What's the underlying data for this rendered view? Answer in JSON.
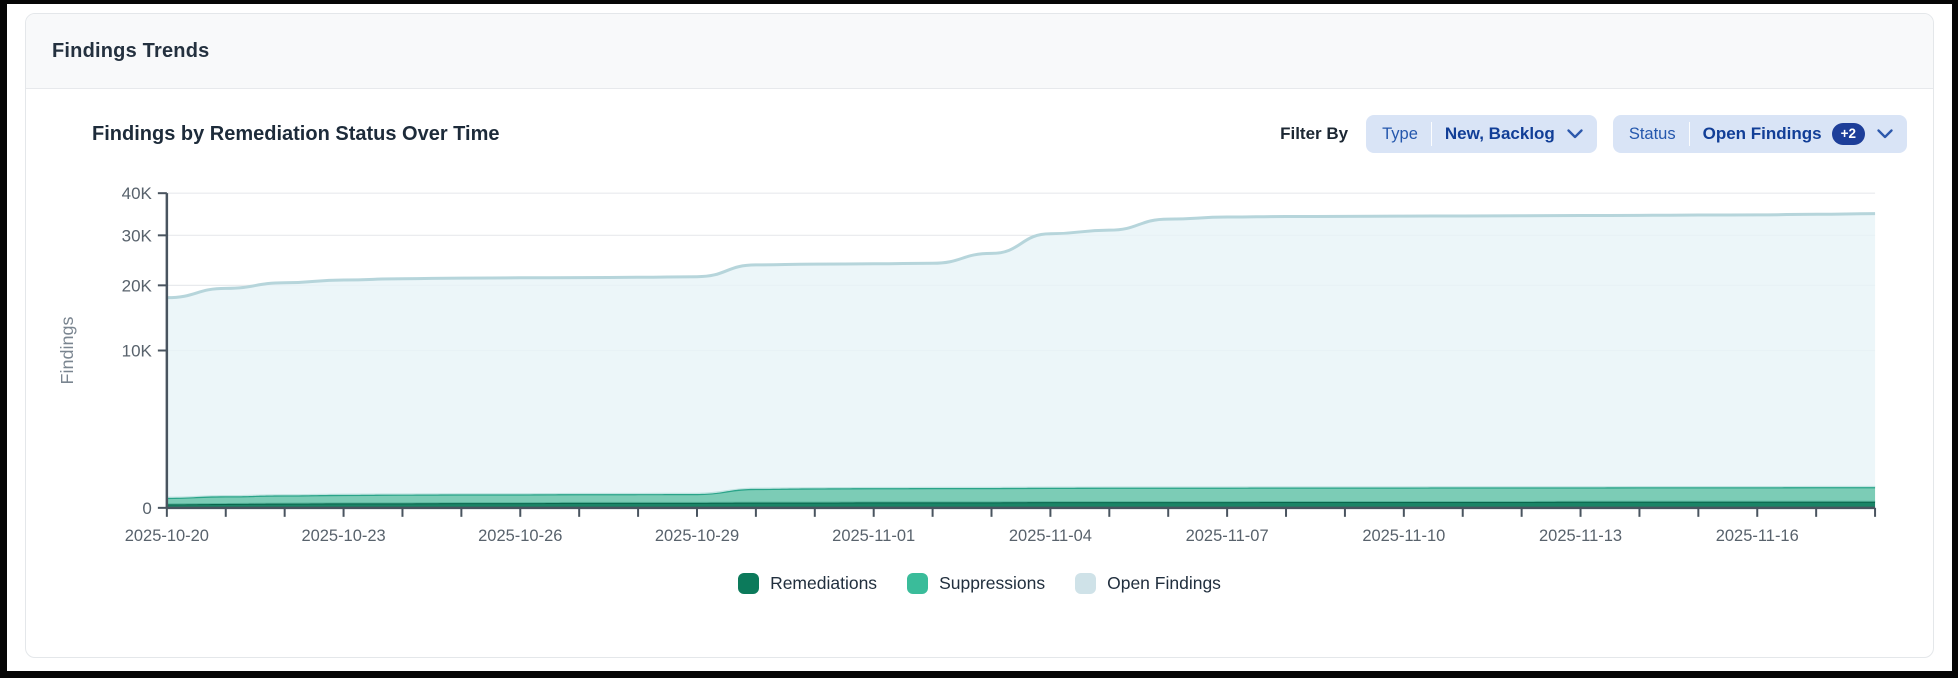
{
  "panel": {
    "title": "Findings Trends"
  },
  "toolbar": {
    "filter_by_label": "Filter By",
    "filters": [
      {
        "label": "Type",
        "value": "New, Backlog"
      },
      {
        "label": "Status",
        "value": "Open Findings",
        "badge": "+2"
      }
    ]
  },
  "chart_data": {
    "type": "area",
    "stacked": true,
    "y_scale": "sqrt",
    "grid": "horizontal",
    "legend_position": "bottom",
    "title": "Findings by Remediation Status Over Time",
    "xlabel": "",
    "ylabel": "Findings",
    "ylim": [
      0,
      40000
    ],
    "y_ticks": [
      {
        "value": 0,
        "label": "0"
      },
      {
        "value": 10000,
        "label": "10K"
      },
      {
        "value": 20000,
        "label": "20K"
      },
      {
        "value": 30000,
        "label": "30K"
      },
      {
        "value": 40000,
        "label": "40K"
      }
    ],
    "x_label_every": 3,
    "x": [
      "2025-10-20",
      "2025-10-21",
      "2025-10-22",
      "2025-10-23",
      "2025-10-24",
      "2025-10-25",
      "2025-10-26",
      "2025-10-27",
      "2025-10-28",
      "2025-10-29",
      "2025-10-30",
      "2025-10-31",
      "2025-11-01",
      "2025-11-02",
      "2025-11-03",
      "2025-11-04",
      "2025-11-05",
      "2025-11-06",
      "2025-11-07",
      "2025-11-08",
      "2025-11-09",
      "2025-11-10",
      "2025-11-11",
      "2025-11-12",
      "2025-11-13",
      "2025-11-14",
      "2025-11-15",
      "2025-11-16",
      "2025-11-17",
      "2025-11-18"
    ],
    "series": [
      {
        "name": "Remediations",
        "color": "#0c7a5b",
        "line_color": "#09654c",
        "line_width": 2,
        "fill_color": "#0e7d5e",
        "fill_opacity": 0.95,
        "values": [
          5,
          6,
          7,
          8,
          8,
          9,
          9,
          10,
          10,
          10,
          11,
          11,
          12,
          12,
          12,
          13,
          13,
          13,
          13,
          14,
          14,
          14,
          14,
          14,
          15,
          15,
          15,
          15,
          15,
          15
        ]
      },
      {
        "name": "Suppressions",
        "color": "#3abc9a",
        "line_color": "#2aa489",
        "line_width": 2.5,
        "fill_color": "#65c3a9",
        "fill_opacity": 0.85,
        "values": [
          35,
          48,
          56,
          60,
          63,
          64,
          65,
          66,
          67,
          68,
          135,
          142,
          145,
          147,
          148,
          150,
          151,
          152,
          153,
          153,
          154,
          154,
          155,
          155,
          155,
          156,
          156,
          156,
          157,
          157
        ]
      },
      {
        "name": "Open Findings",
        "color": "#cfe2e8",
        "line_color": "#b6d5db",
        "line_width": 3,
        "fill_color": "#e7f4f7",
        "fill_opacity": 0.8,
        "values": [
          17800,
          19400,
          20400,
          20900,
          21150,
          21250,
          21300,
          21350,
          21400,
          21500,
          23700,
          23850,
          23900,
          24000,
          26000,
          30200,
          31000,
          33500,
          34000,
          34100,
          34150,
          34200,
          34250,
          34300,
          34350,
          34400,
          34450,
          34500,
          34650,
          34800
        ]
      }
    ],
    "axis_color": "#49545f",
    "grid_color": "#e8eaed",
    "tick_label_color": "#58626c",
    "ylabel_color": "#7a8590"
  }
}
